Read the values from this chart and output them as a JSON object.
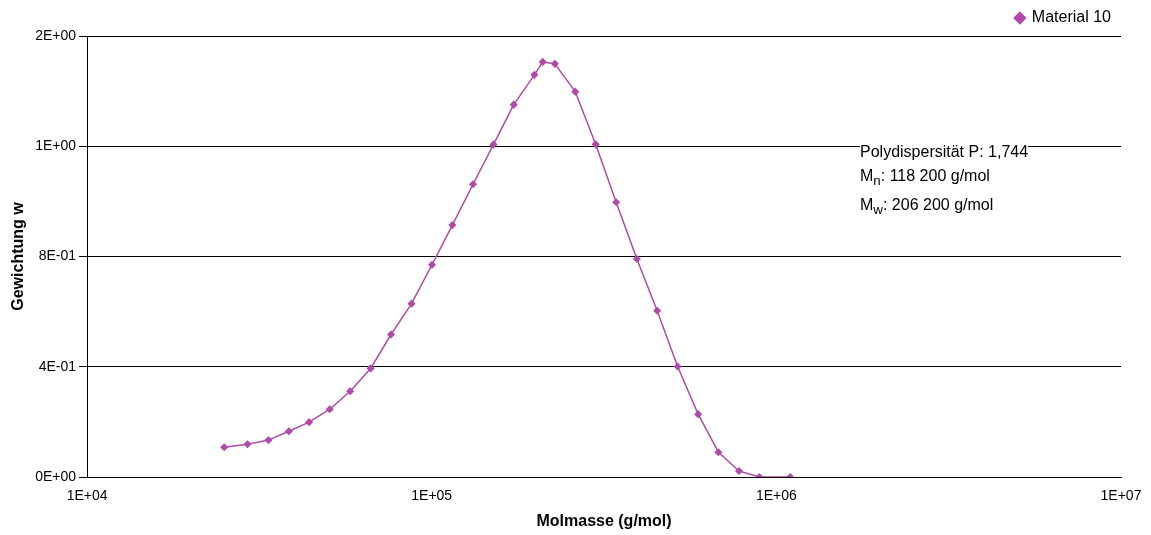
{
  "chart_data": {
    "type": "line",
    "xlabel": "Molmasse (g/mol)",
    "ylabel": "Gewichtung w",
    "x": [
      25000,
      29200,
      33600,
      38500,
      44100,
      50600,
      58000,
      66500,
      76200,
      87400,
      100200,
      114800,
      131800,
      151000,
      173000,
      198600,
      210000,
      227700,
      261000,
      299000,
      343000,
      393800,
      451000,
      517000,
      593000,
      679000,
      779000,
      893000,
      1097000
    ],
    "series": [
      {
        "name": "Material 10",
        "color": "#b04aa8",
        "values": [
          0.108,
          0.119,
          0.134,
          0.166,
          0.199,
          0.246,
          0.311,
          0.394,
          0.517,
          0.629,
          0.77,
          0.914,
          1.062,
          1.206,
          1.351,
          1.459,
          1.506,
          1.499,
          1.398,
          1.207,
          0.997,
          0.791,
          0.603,
          0.401,
          0.228,
          0.09,
          0.022,
          0,
          0
        ]
      }
    ],
    "log": "x",
    "xlim": [
      10000,
      10000000
    ],
    "xticks": [
      {
        "value": 10000,
        "label": "1E+04"
      },
      {
        "value": 100000,
        "label": "1E+05"
      },
      {
        "value": 1000000,
        "label": "1E+06"
      },
      {
        "value": 10000000,
        "label": "1E+07"
      }
    ],
    "ylim": [
      0,
      1.6
    ],
    "yticks": [
      {
        "value": 0,
        "label": "0E+00"
      },
      {
        "value": 0.4,
        "label": "4E-01"
      },
      {
        "value": 0.8,
        "label": "8E-01"
      },
      {
        "value": 1.2,
        "label": "1E+00"
      },
      {
        "value": 1.6,
        "label": "2E+00"
      }
    ],
    "grid": "y",
    "legend": "top right",
    "marker": "diamond",
    "line_style": "solid",
    "annotations": [
      "Polydispersität P: 1,744",
      "M$_{n}$: 118 200 g/mol",
      "M$_{w}$: 206 200 g/mol"
    ]
  }
}
